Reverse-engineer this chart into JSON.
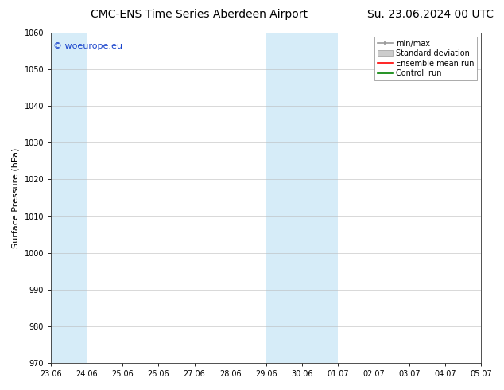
{
  "title_left": "CMC-ENS Time Series Aberdeen Airport",
  "title_right": "Su. 23.06.2024 00 UTC",
  "ylabel": "Surface Pressure (hPa)",
  "ylim": [
    970,
    1060
  ],
  "yticks": [
    970,
    980,
    990,
    1000,
    1010,
    1020,
    1030,
    1040,
    1050,
    1060
  ],
  "xtick_labels": [
    "23.06",
    "24.06",
    "25.06",
    "26.06",
    "27.06",
    "28.06",
    "29.06",
    "30.06",
    "01.07",
    "02.07",
    "03.07",
    "04.07",
    "05.07"
  ],
  "xtick_positions": [
    0,
    1,
    2,
    3,
    4,
    5,
    6,
    7,
    8,
    9,
    10,
    11,
    12
  ],
  "shaded_regions": [
    {
      "x_start": 0,
      "x_end": 1,
      "color": "#d6ecf8"
    },
    {
      "x_start": 6,
      "x_end": 7,
      "color": "#d6ecf8"
    },
    {
      "x_start": 7,
      "x_end": 8,
      "color": "#d6ecf8"
    }
  ],
  "watermark": "© woeurope.eu",
  "watermark_color": "#1a44cc",
  "background_color": "#ffffff",
  "plot_bg_color": "#ffffff",
  "grid_color": "#bbbbbb",
  "legend_items": [
    {
      "label": "min/max",
      "color": "#999999",
      "style": "minmax"
    },
    {
      "label": "Standard deviation",
      "color": "#cccccc",
      "style": "band"
    },
    {
      "label": "Ensemble mean run",
      "color": "#ff0000",
      "style": "line"
    },
    {
      "label": "Controll run",
      "color": "#008000",
      "style": "line"
    }
  ],
  "title_fontsize": 10,
  "tick_fontsize": 7,
  "ylabel_fontsize": 8,
  "legend_fontsize": 7,
  "watermark_fontsize": 8
}
